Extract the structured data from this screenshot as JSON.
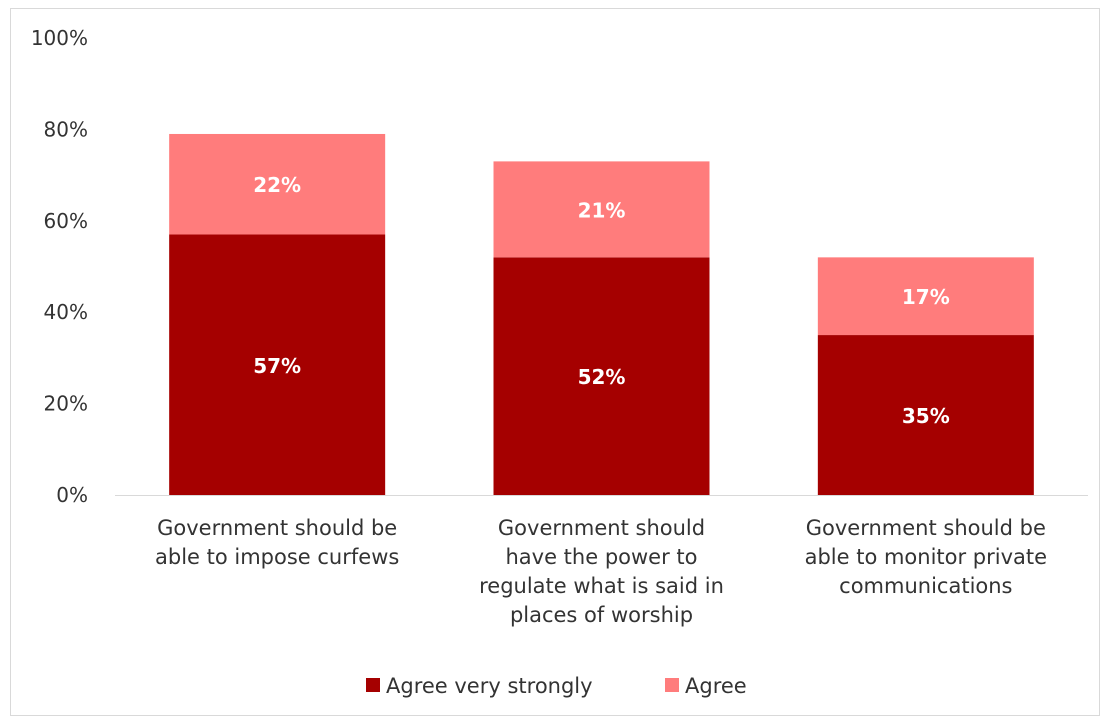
{
  "chart_data": {
    "type": "bar",
    "stacked": true,
    "categories": [
      [
        "Government should be",
        "able to impose curfews"
      ],
      [
        "Government should",
        "have the power to",
        "regulate what is said in",
        "places of worship"
      ],
      [
        "Government should be",
        "able to monitor private",
        "communications"
      ]
    ],
    "series": [
      {
        "name": "Agree very strongly",
        "values": [
          57,
          52,
          35
        ],
        "labels": [
          "57%",
          "52%",
          "35%"
        ],
        "color": "#a50000"
      },
      {
        "name": "Agree",
        "values": [
          22,
          21,
          17
        ],
        "labels": [
          "22%",
          "21%",
          "17%"
        ],
        "color": "#ff7c7c"
      }
    ],
    "ylim": [
      0,
      100
    ],
    "yticks": [
      "0%",
      "20%",
      "40%",
      "60%",
      "80%",
      "100%"
    ],
    "ytick_values": [
      0,
      20,
      40,
      60,
      80,
      100
    ],
    "grid": false,
    "legend_position": "bottom"
  }
}
